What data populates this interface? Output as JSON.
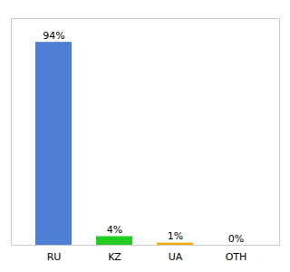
{
  "chart_data": {
    "type": "bar",
    "categories": [
      "RU",
      "KZ",
      "UA",
      "OTH"
    ],
    "values": [
      94,
      4,
      1,
      0
    ],
    "value_labels": [
      "94%",
      "4%",
      "1%",
      "0%"
    ],
    "colors": [
      "#4d7fd4",
      "#22cc22",
      "#f5a800",
      "#4d7fd4"
    ],
    "ylim": [
      0,
      105
    ],
    "data_labels": true,
    "tick_labels": "x",
    "grid": false
  }
}
